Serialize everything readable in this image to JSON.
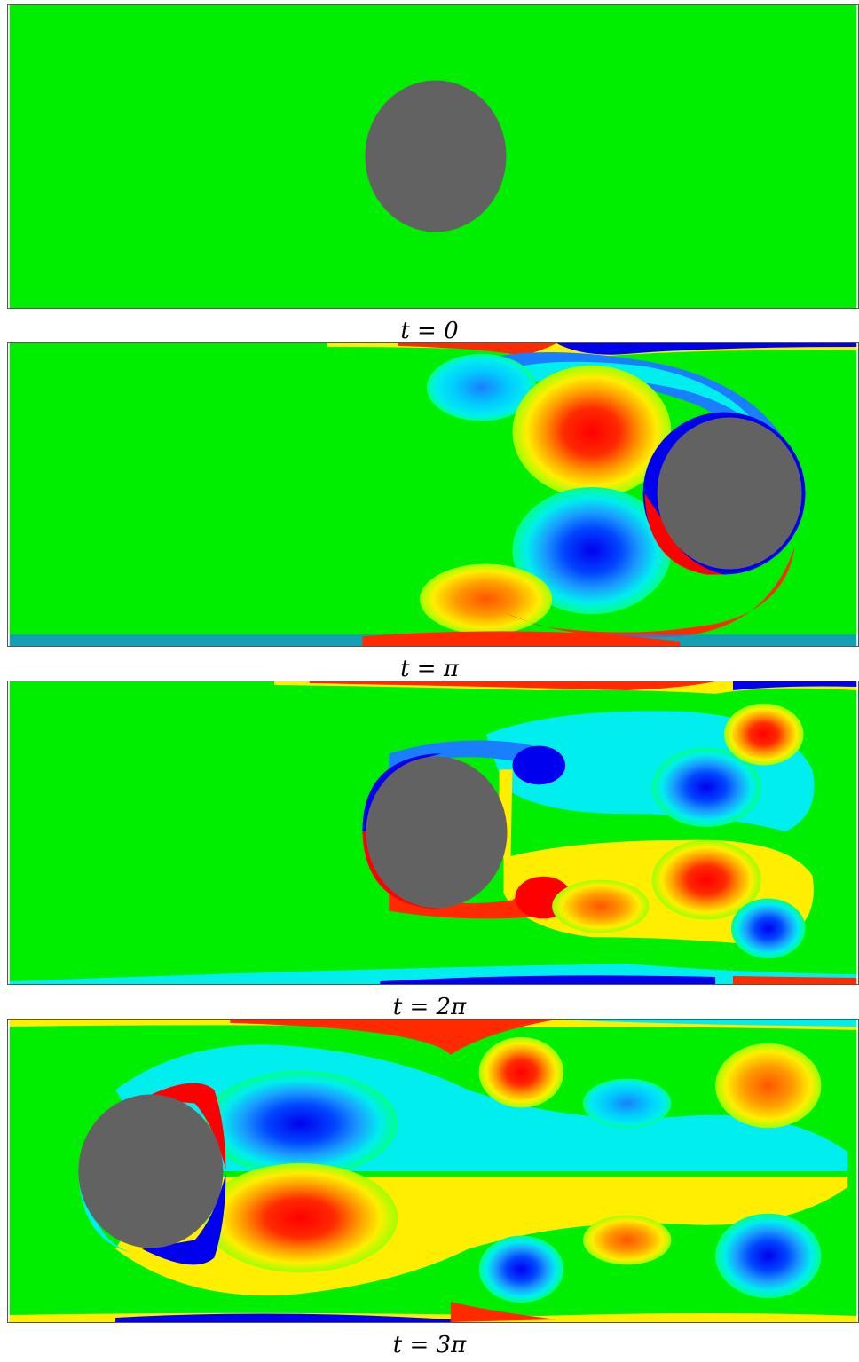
{
  "figure": {
    "panels": [
      {
        "caption": "t = 0"
      },
      {
        "caption": "t = π"
      },
      {
        "caption": "t = 2π"
      },
      {
        "caption": "t = 3π"
      }
    ],
    "colors": {
      "background_field": "#00ee00",
      "obstacle": "#626262",
      "positive_strong": "#ff0000",
      "positive_mid": "#ff8800",
      "positive_weak": "#ffee00",
      "negative_weak": "#00eeee",
      "negative_mid": "#1a7fff",
      "negative_strong": "#0000ee"
    }
  }
}
